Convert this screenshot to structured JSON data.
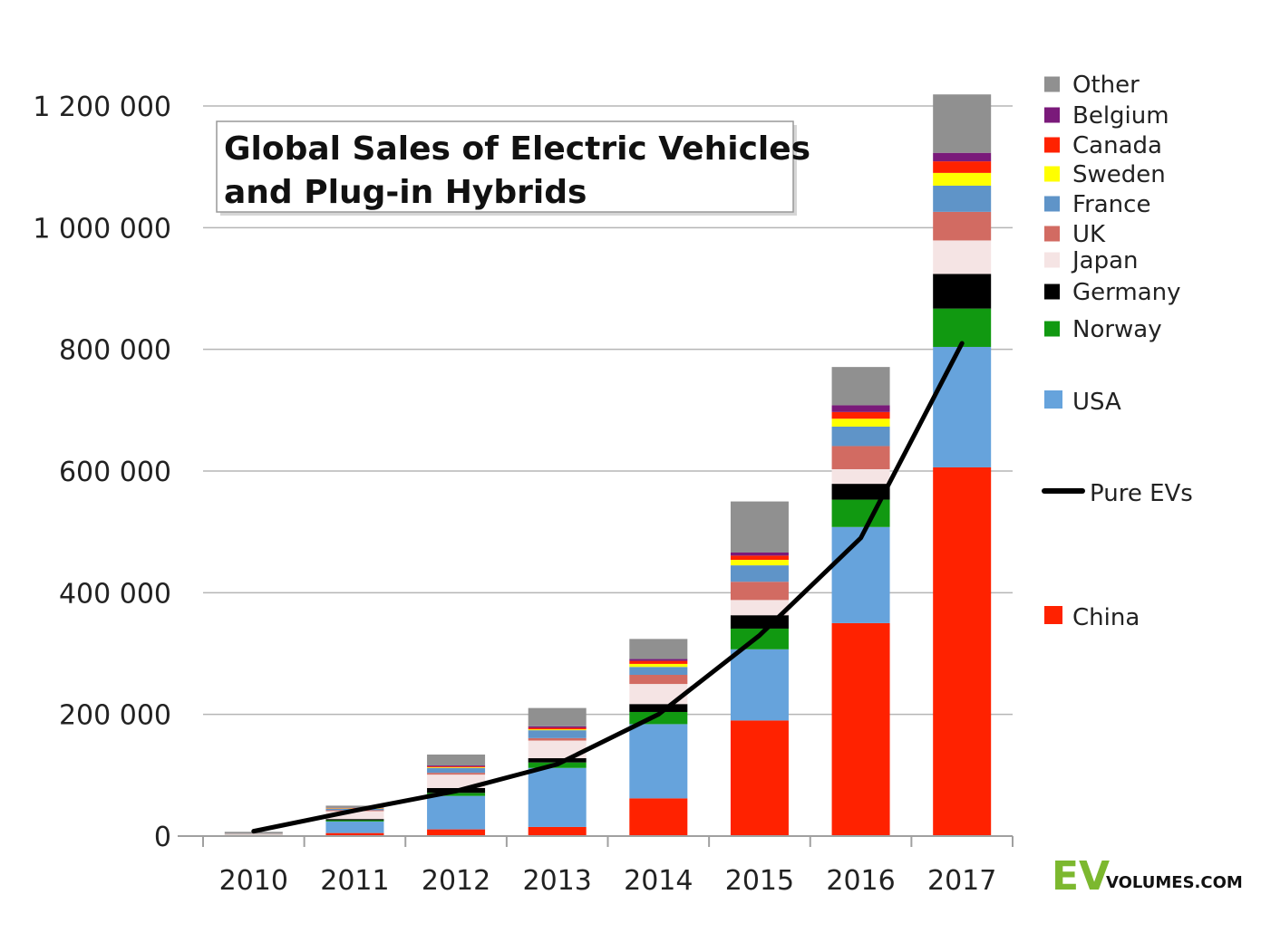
{
  "chart_data": {
    "type": "bar",
    "stacked": true,
    "title": "Global Sales of Electric Vehicles and Plug-in Hybrids",
    "categories": [
      "2010",
      "2011",
      "2012",
      "2013",
      "2014",
      "2015",
      "2016",
      "2017"
    ],
    "ylim": [
      0,
      1200000
    ],
    "yticks": [
      {
        "value": 0,
        "label": "0"
      },
      {
        "value": 200000,
        "label": "200 000"
      },
      {
        "value": 400000,
        "label": "400 000"
      },
      {
        "value": 600000,
        "label": "600 000"
      },
      {
        "value": 800000,
        "label": "800 000"
      },
      {
        "value": 1000000,
        "label": "1 000 000"
      },
      {
        "value": 1200000,
        "label": "1 200 000"
      }
    ],
    "grid": true,
    "legend_position": "right",
    "series": [
      {
        "name": "China",
        "color": "#ff2200",
        "values": [
          500,
          5000,
          11000,
          15000,
          62000,
          190000,
          350000,
          606000
        ]
      },
      {
        "name": "USA",
        "color": "#66a3dc",
        "values": [
          800,
          19000,
          55000,
          97000,
          122000,
          117000,
          158000,
          198000
        ]
      },
      {
        "name": "Norway",
        "color": "#119911",
        "values": [
          300,
          2000,
          5000,
          9000,
          20000,
          34000,
          45000,
          63000
        ]
      },
      {
        "name": "Germany",
        "color": "#000000",
        "values": [
          300,
          2000,
          8000,
          7000,
          13000,
          22000,
          26000,
          57000
        ]
      },
      {
        "name": "Japan",
        "color": "#f5e4e4",
        "values": [
          1500,
          13000,
          22000,
          29000,
          33000,
          25000,
          24000,
          55000
        ]
      },
      {
        "name": "UK",
        "color": "#d26b62",
        "values": [
          200,
          1500,
          3000,
          4000,
          15000,
          30000,
          38000,
          47000
        ]
      },
      {
        "name": "France",
        "color": "#5f94c8",
        "values": [
          300,
          2500,
          8000,
          13000,
          13000,
          27000,
          32000,
          43000
        ]
      },
      {
        "name": "Sweden",
        "color": "#ffff00",
        "values": [
          100,
          500,
          1000,
          1500,
          5000,
          9000,
          13000,
          21000
        ]
      },
      {
        "name": "Canada",
        "color": "#ff2200",
        "values": [
          50,
          500,
          1500,
          2500,
          5000,
          7000,
          11000,
          19000
        ]
      },
      {
        "name": "Belgium",
        "color": "#7a1a7a",
        "values": [
          50,
          500,
          1500,
          2500,
          3000,
          5000,
          11000,
          14000
        ]
      },
      {
        "name": "Other",
        "color": "#909090",
        "values": [
          2900,
          3500,
          18000,
          30000,
          33000,
          84000,
          63000,
          96000
        ]
      }
    ],
    "line_series": {
      "name": "Pure EVs",
      "color": "#000000",
      "values": [
        8000,
        42000,
        74000,
        118000,
        200000,
        330000,
        490000,
        810000
      ]
    }
  },
  "logo": {
    "big": "EV",
    "small": "VOLUMES.COM"
  }
}
